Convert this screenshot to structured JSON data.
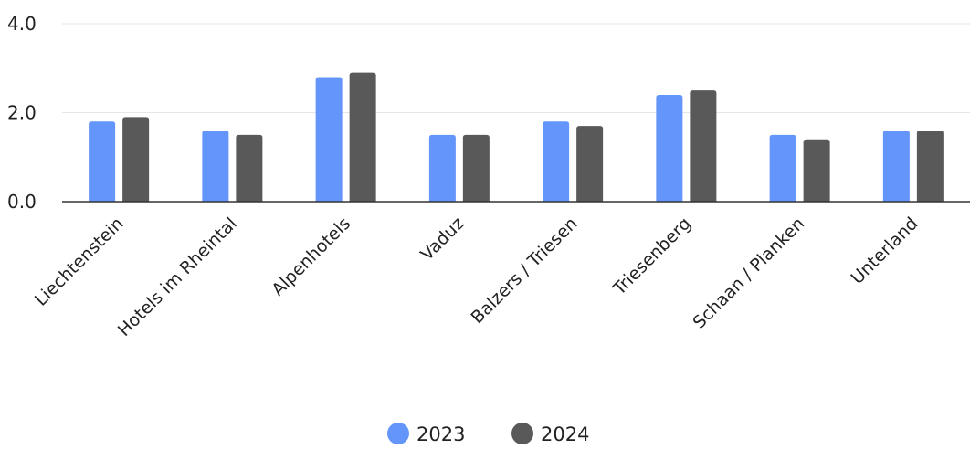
{
  "chart_data": {
    "type": "bar",
    "categories": [
      "Liechtenstein",
      "Hotels im Rheintal",
      "Alpenhotels",
      "Vaduz",
      "Balzers / Triesen",
      "Triesenberg",
      "Schaan / Planken",
      "Unterland"
    ],
    "series": [
      {
        "name": "2023",
        "color": "#6495fa",
        "values": [
          1.8,
          1.6,
          2.8,
          1.5,
          1.8,
          2.4,
          1.5,
          1.6
        ]
      },
      {
        "name": "2024",
        "color": "#595959",
        "values": [
          1.9,
          1.5,
          2.9,
          1.5,
          1.7,
          2.5,
          1.4,
          1.6
        ]
      }
    ],
    "y_ticks": [
      "0.0",
      "2.0",
      "4.0"
    ],
    "ylim": [
      0,
      4
    ],
    "grid": true,
    "legend_position": "bottom"
  }
}
